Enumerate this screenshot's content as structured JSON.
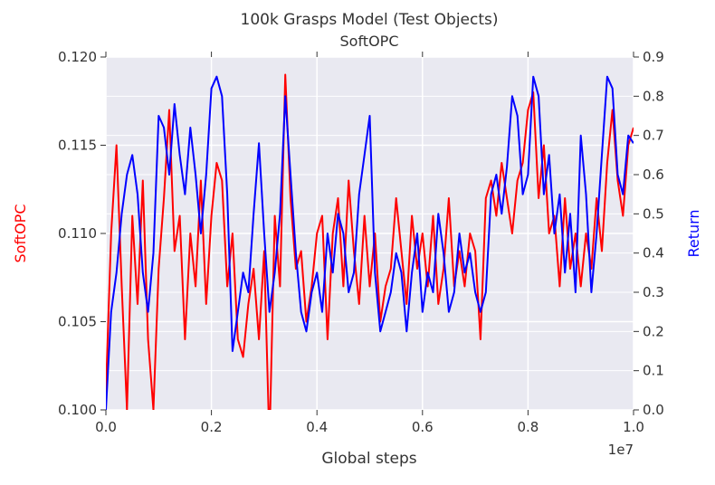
{
  "chart_data": {
    "type": "line",
    "title": "100k Grasps Model (Test Objects)",
    "subtitle": "SoftOPC",
    "xlabel": "Global steps",
    "x_scale_label": "1e7",
    "ylabel_left": "SoftOPC",
    "ylabel_right": "Return",
    "xlim": [
      0.0,
      1.0
    ],
    "ylim_left": [
      0.1,
      0.12
    ],
    "ylim_right": [
      0.0,
      0.9
    ],
    "x_ticks": [
      "0.0",
      "0.2",
      "0.4",
      "0.6",
      "0.8",
      "1.0"
    ],
    "x_tick_values": [
      0.0,
      0.2,
      0.4,
      0.6,
      0.8,
      1.0
    ],
    "y_left_ticks": [
      "0.100",
      "0.105",
      "0.110",
      "0.115",
      "0.120"
    ],
    "y_left_tick_values": [
      0.1,
      0.105,
      0.11,
      0.115,
      0.12
    ],
    "y_right_ticks": [
      "0.0",
      "0.1",
      "0.2",
      "0.3",
      "0.4",
      "0.5",
      "0.6",
      "0.7",
      "0.8",
      "0.9"
    ],
    "y_right_tick_values": [
      0.0,
      0.1,
      0.2,
      0.3,
      0.4,
      0.5,
      0.6,
      0.7,
      0.8,
      0.9
    ],
    "grid": true,
    "background": "#e9e9f1",
    "series": [
      {
        "axis": "left",
        "color": "#ff0000",
        "x": [
          0.0,
          0.01,
          0.02,
          0.03,
          0.04,
          0.05,
          0.06,
          0.07,
          0.08,
          0.09,
          0.1,
          0.11,
          0.12,
          0.13,
          0.14,
          0.15,
          0.16,
          0.17,
          0.18,
          0.19,
          0.2,
          0.21,
          0.22,
          0.23,
          0.24,
          0.25,
          0.26,
          0.27,
          0.28,
          0.29,
          0.3,
          0.31,
          0.32,
          0.33,
          0.34,
          0.35,
          0.36,
          0.37,
          0.38,
          0.39,
          0.4,
          0.41,
          0.42,
          0.43,
          0.44,
          0.45,
          0.46,
          0.47,
          0.48,
          0.49,
          0.5,
          0.51,
          0.52,
          0.53,
          0.54,
          0.55,
          0.56,
          0.57,
          0.58,
          0.59,
          0.6,
          0.61,
          0.62,
          0.63,
          0.64,
          0.65,
          0.66,
          0.67,
          0.68,
          0.69,
          0.7,
          0.71,
          0.72,
          0.73,
          0.74,
          0.75,
          0.76,
          0.77,
          0.78,
          0.79,
          0.8,
          0.81,
          0.82,
          0.83,
          0.84,
          0.85,
          0.86,
          0.87,
          0.88,
          0.89,
          0.9,
          0.91,
          0.92,
          0.93,
          0.94,
          0.95,
          0.96,
          0.97,
          0.98,
          0.99,
          1.0
        ],
        "y": [
          0.101,
          0.11,
          0.115,
          0.107,
          0.1,
          0.111,
          0.106,
          0.113,
          0.104,
          0.1,
          0.108,
          0.112,
          0.117,
          0.109,
          0.111,
          0.104,
          0.11,
          0.107,
          0.113,
          0.106,
          0.111,
          0.114,
          0.113,
          0.107,
          0.11,
          0.104,
          0.103,
          0.106,
          0.108,
          0.104,
          0.109,
          0.098,
          0.111,
          0.107,
          0.119,
          0.112,
          0.108,
          0.109,
          0.105,
          0.107,
          0.11,
          0.111,
          0.104,
          0.11,
          0.112,
          0.107,
          0.113,
          0.109,
          0.106,
          0.111,
          0.107,
          0.11,
          0.105,
          0.107,
          0.108,
          0.112,
          0.109,
          0.106,
          0.111,
          0.108,
          0.11,
          0.107,
          0.111,
          0.106,
          0.108,
          0.112,
          0.107,
          0.109,
          0.107,
          0.11,
          0.109,
          0.104,
          0.112,
          0.113,
          0.111,
          0.114,
          0.112,
          0.11,
          0.113,
          0.114,
          0.117,
          0.118,
          0.112,
          0.115,
          0.11,
          0.111,
          0.107,
          0.112,
          0.108,
          0.11,
          0.107,
          0.11,
          0.108,
          0.112,
          0.109,
          0.114,
          0.117,
          0.113,
          0.111,
          0.115,
          0.116
        ]
      },
      {
        "axis": "right",
        "color": "#0000ff",
        "x": [
          0.0,
          0.01,
          0.02,
          0.03,
          0.04,
          0.05,
          0.06,
          0.07,
          0.08,
          0.09,
          0.1,
          0.11,
          0.12,
          0.13,
          0.14,
          0.15,
          0.16,
          0.17,
          0.18,
          0.19,
          0.2,
          0.21,
          0.22,
          0.23,
          0.24,
          0.25,
          0.26,
          0.27,
          0.28,
          0.29,
          0.3,
          0.31,
          0.32,
          0.33,
          0.34,
          0.35,
          0.36,
          0.37,
          0.38,
          0.39,
          0.4,
          0.41,
          0.42,
          0.43,
          0.44,
          0.45,
          0.46,
          0.47,
          0.48,
          0.49,
          0.5,
          0.51,
          0.52,
          0.53,
          0.54,
          0.55,
          0.56,
          0.57,
          0.58,
          0.59,
          0.6,
          0.61,
          0.62,
          0.63,
          0.64,
          0.65,
          0.66,
          0.67,
          0.68,
          0.69,
          0.7,
          0.71,
          0.72,
          0.73,
          0.74,
          0.75,
          0.76,
          0.77,
          0.78,
          0.79,
          0.8,
          0.81,
          0.82,
          0.83,
          0.84,
          0.85,
          0.86,
          0.87,
          0.88,
          0.89,
          0.9,
          0.91,
          0.92,
          0.93,
          0.94,
          0.95,
          0.96,
          0.97,
          0.98,
          0.99,
          1.0
        ],
        "y": [
          0.0,
          0.25,
          0.35,
          0.5,
          0.6,
          0.65,
          0.55,
          0.35,
          0.25,
          0.4,
          0.75,
          0.72,
          0.6,
          0.78,
          0.65,
          0.55,
          0.72,
          0.6,
          0.45,
          0.6,
          0.82,
          0.85,
          0.8,
          0.55,
          0.15,
          0.25,
          0.35,
          0.3,
          0.5,
          0.68,
          0.45,
          0.25,
          0.35,
          0.5,
          0.8,
          0.6,
          0.4,
          0.25,
          0.2,
          0.3,
          0.35,
          0.25,
          0.45,
          0.35,
          0.5,
          0.45,
          0.3,
          0.35,
          0.55,
          0.65,
          0.75,
          0.35,
          0.2,
          0.25,
          0.3,
          0.4,
          0.35,
          0.2,
          0.35,
          0.45,
          0.25,
          0.35,
          0.3,
          0.5,
          0.4,
          0.25,
          0.3,
          0.45,
          0.35,
          0.4,
          0.3,
          0.25,
          0.3,
          0.55,
          0.6,
          0.5,
          0.62,
          0.8,
          0.75,
          0.55,
          0.6,
          0.85,
          0.8,
          0.55,
          0.65,
          0.45,
          0.55,
          0.35,
          0.5,
          0.3,
          0.7,
          0.55,
          0.3,
          0.45,
          0.65,
          0.85,
          0.82,
          0.6,
          0.55,
          0.7,
          0.68
        ]
      }
    ]
  }
}
